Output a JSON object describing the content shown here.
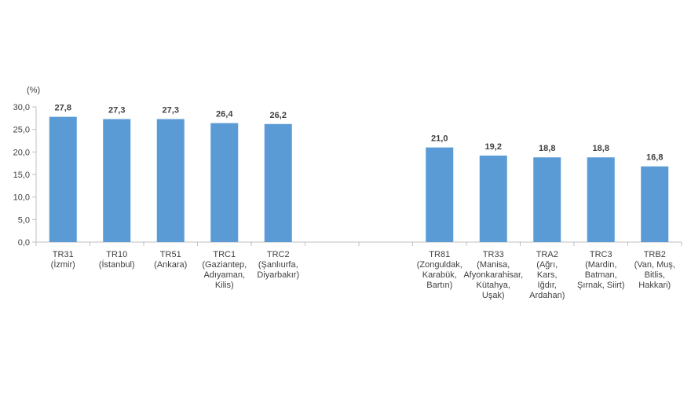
{
  "chart_data": {
    "type": "bar",
    "unit_label": "(%)",
    "ylim": [
      0,
      30
    ],
    "yticks": [
      "0,0",
      "5,0",
      "10,0",
      "15,0",
      "20,0",
      "25,0",
      "30,0"
    ],
    "grid": false,
    "bar_color": "#5b9bd5",
    "categories": [
      [
        "TR31",
        "(İzmir)"
      ],
      [
        "TR10",
        "(İstanbul)"
      ],
      [
        "TR51",
        "(Ankara)"
      ],
      [
        "TRC1",
        "(Gaziantep,",
        "Adıyaman,",
        "Kilis)"
      ],
      [
        "TRC2",
        "(Şanlıurfa,",
        "Diyarbakır)"
      ],
      [],
      [],
      [
        "TR81",
        "(Zonguldak,",
        "Karabük,",
        "Bartın)"
      ],
      [
        "TR33",
        "(Manisa,",
        "Afyonkarahisar,",
        "Kütahya,",
        "Uşak)"
      ],
      [
        "TRA2",
        "(Ağrı,",
        "Kars,",
        "Iğdır,",
        "Ardahan)"
      ],
      [
        "TRC3",
        "(Mardin,",
        "Batman,",
        "Şırnak, Siirt)"
      ],
      [
        "TRB2",
        "(Van, Muş,",
        "Bitlis,",
        "Hakkari)"
      ]
    ],
    "values": [
      27.8,
      27.3,
      27.3,
      26.4,
      26.2,
      null,
      null,
      21.0,
      19.2,
      18.8,
      18.8,
      16.8
    ],
    "data_labels": [
      "27,8",
      "27,3",
      "27,3",
      "26,4",
      "26,2",
      "",
      "",
      "21,0",
      "19,2",
      "18,8",
      "18,8",
      "16,8"
    ]
  }
}
